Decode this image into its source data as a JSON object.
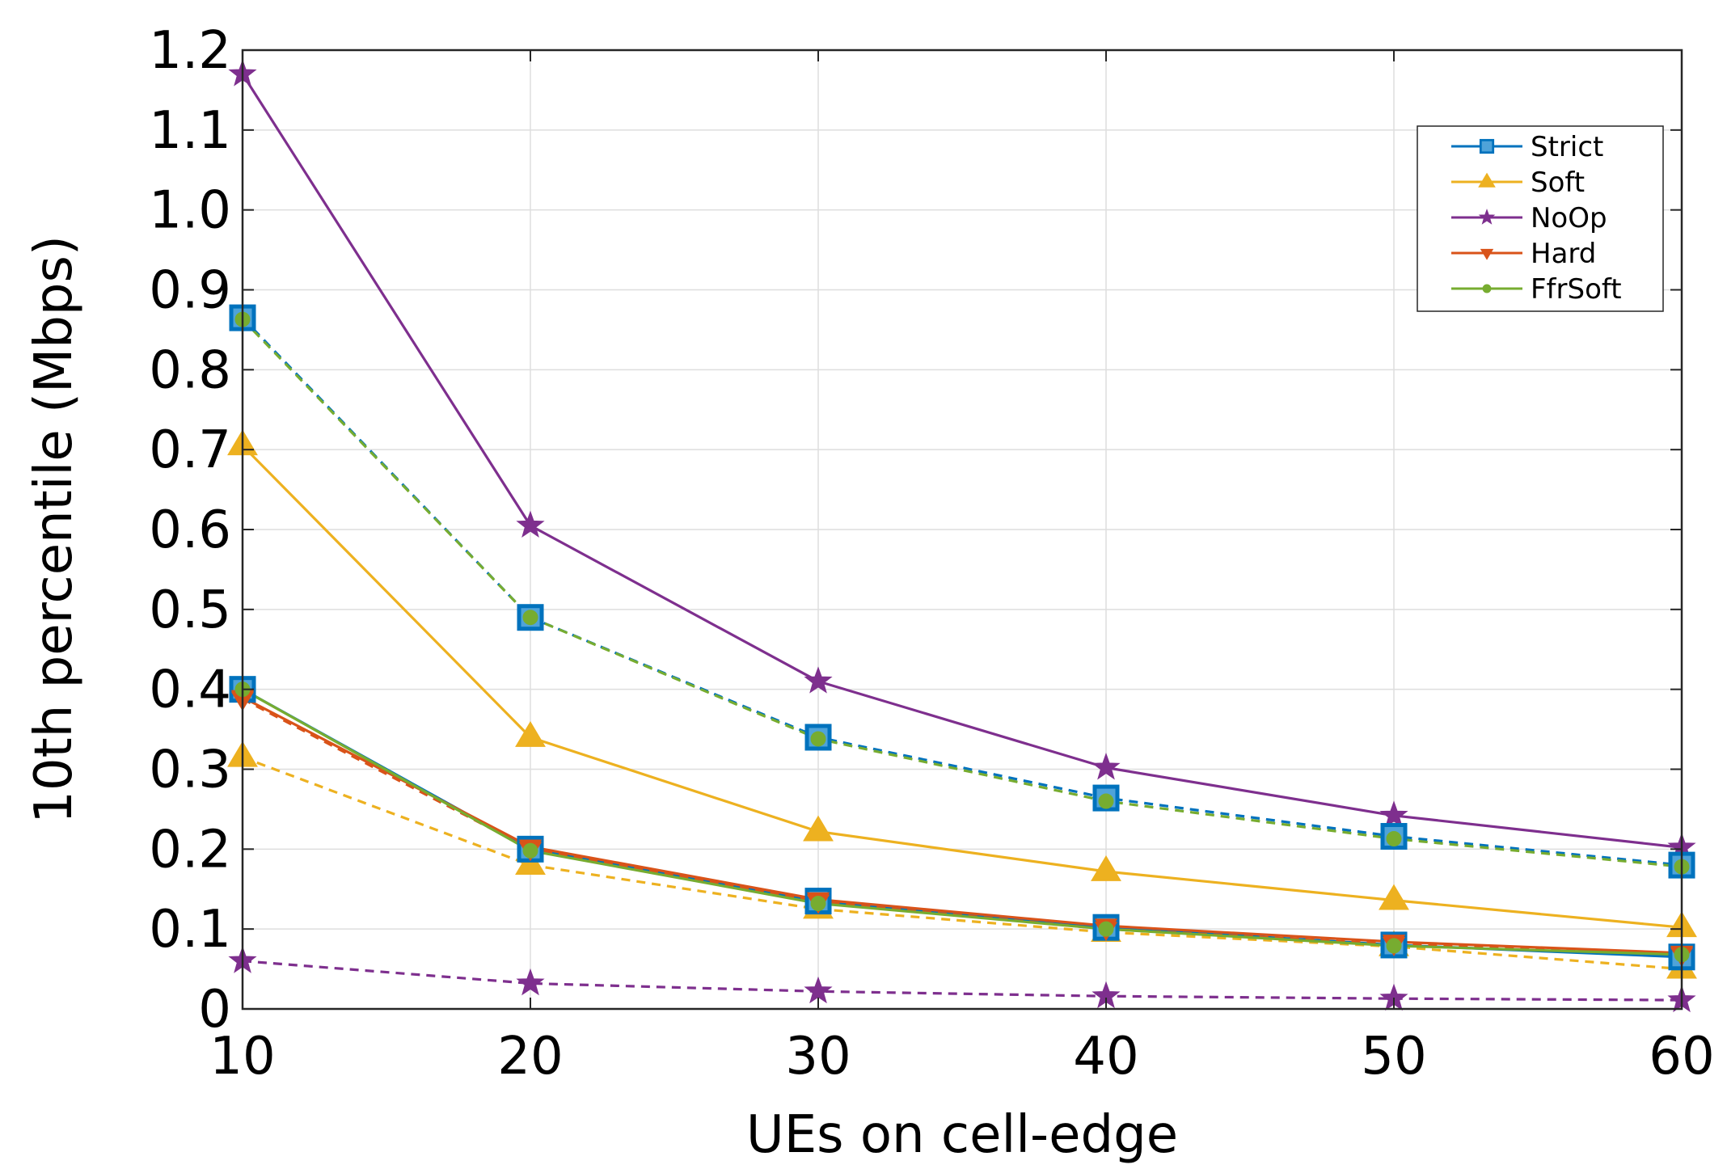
{
  "chart_data": {
    "type": "line",
    "title": "",
    "xlabel": "UEs on cell-edge",
    "ylabel": "10th percentile (Mbps)",
    "x": [
      10,
      20,
      30,
      40,
      50,
      60
    ],
    "xlim": [
      10,
      60
    ],
    "ylim": [
      0,
      1.2
    ],
    "xticks": [
      "10",
      "20",
      "30",
      "40",
      "50",
      "60"
    ],
    "yticks": [
      "0",
      "0.1",
      "0.2",
      "0.3",
      "0.4",
      "0.5",
      "0.6",
      "0.7",
      "0.8",
      "0.9",
      "1.0",
      "1.1",
      "1.2"
    ],
    "grid": true,
    "legend_position": "top-right",
    "legend": [
      "Strict",
      "Soft",
      "NoOp",
      "Hard",
      "FfrSoft"
    ],
    "colors": {
      "Strict": "#0072BD",
      "Soft": "#EDB120",
      "NoOp": "#7E2F8E",
      "Hard": "#D95319",
      "FfrSoft": "#77AC30"
    },
    "series": [
      {
        "name": "NoOp",
        "style": "solid",
        "marker": "star",
        "values": [
          1.17,
          0.605,
          0.41,
          0.302,
          0.242,
          0.202
        ]
      },
      {
        "name": "NoOp",
        "style": "dashed",
        "marker": "star",
        "values": [
          0.06,
          0.032,
          0.022,
          0.016,
          0.013,
          0.011
        ]
      },
      {
        "name": "Soft",
        "style": "solid",
        "marker": "triangle",
        "values": [
          0.705,
          0.34,
          0.222,
          0.172,
          0.136,
          0.102
        ]
      },
      {
        "name": "Soft",
        "style": "dashed",
        "marker": "triangle",
        "values": [
          0.315,
          0.18,
          0.125,
          0.096,
          0.078,
          0.05
        ]
      },
      {
        "name": "Strict",
        "style": "dashed",
        "marker": "square",
        "values": [
          0.865,
          0.49,
          0.34,
          0.264,
          0.216,
          0.18
        ]
      },
      {
        "name": "FfrSoft",
        "style": "dashed",
        "marker": "circle",
        "values": [
          0.863,
          0.49,
          0.338,
          0.26,
          0.213,
          0.178
        ]
      },
      {
        "name": "Strict",
        "style": "solid",
        "marker": "square",
        "values": [
          0.4,
          0.2,
          0.135,
          0.102,
          0.08,
          0.065
        ]
      },
      {
        "name": "Hard",
        "style": "solid",
        "marker": "triangle-down",
        "values": [
          0.39,
          0.203,
          0.137,
          0.104,
          0.084,
          0.07
        ]
      },
      {
        "name": "Hard",
        "style": "dashed",
        "marker": "triangle-down",
        "values": [
          0.388,
          0.2,
          0.134,
          0.1,
          0.081,
          0.068
        ]
      },
      {
        "name": "FfrSoft",
        "style": "solid",
        "marker": "circle",
        "values": [
          0.4,
          0.198,
          0.132,
          0.1,
          0.079,
          0.068
        ]
      }
    ]
  }
}
